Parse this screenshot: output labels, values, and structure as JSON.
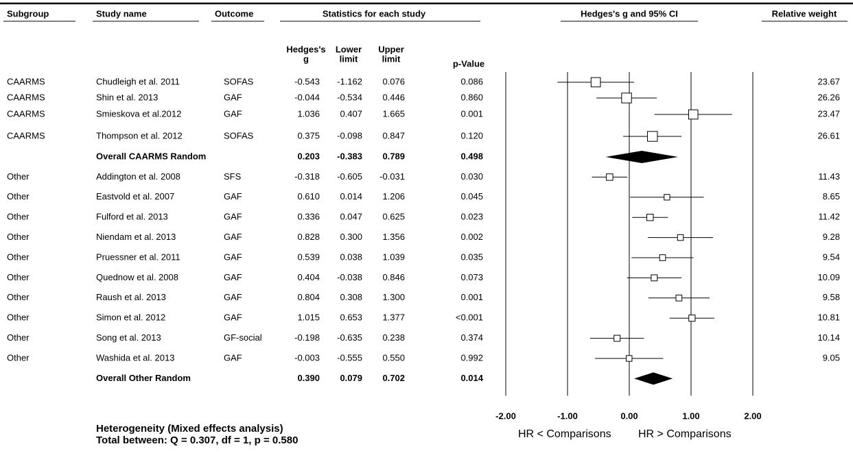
{
  "chart_data": {
    "type": "forest",
    "headers": {
      "subgroup": "Subgroup",
      "study": "Study name",
      "outcome": "Outcome",
      "stats": "Statistics for each study",
      "g": [
        "Hedges's",
        "g"
      ],
      "lower": [
        "Lower",
        "limit"
      ],
      "upper": [
        "Upper",
        "limit"
      ],
      "p": "p-Value",
      "plot": "Hedges's g and 95% CI",
      "weight": "Relative weight"
    },
    "rows": [
      {
        "subgroup": "CAARMS",
        "study": "Chudleigh et al. 2011",
        "outcome": "SOFAS",
        "g": -0.543,
        "g_label": "-0.543",
        "lower": -1.162,
        "lower_label": "-1.162",
        "upper": 0.076,
        "upper_label": "0.076",
        "p": "0.086",
        "weight": 23.67
      },
      {
        "subgroup": "CAARMS",
        "study": "Shin et al. 2013",
        "outcome": "GAF",
        "g": -0.044,
        "g_label": "-0.044",
        "lower": -0.534,
        "lower_label": "-0.534",
        "upper": 0.446,
        "upper_label": "0.446",
        "p": "0.860",
        "weight": 26.26
      },
      {
        "subgroup": "CAARMS",
        "study": "Smieskova et al.2012",
        "outcome": "GAF",
        "g": 1.036,
        "g_label": "1.036",
        "lower": 0.407,
        "lower_label": "0.407",
        "upper": 1.665,
        "upper_label": "1.665",
        "p": "0.001",
        "weight": 23.47
      },
      {
        "subgroup": "CAARMS",
        "study": "Thompson et al. 2012",
        "outcome": "SOFAS",
        "g": 0.375,
        "g_label": "0.375",
        "lower": -0.098,
        "lower_label": "-0.098",
        "upper": 0.847,
        "upper_label": "0.847",
        "p": "0.120",
        "weight": 26.61
      },
      {
        "study": "Overall CAARMS Random",
        "summary": true,
        "g": 0.203,
        "g_label": "0.203",
        "lower": -0.383,
        "lower_label": "-0.383",
        "upper": 0.789,
        "upper_label": "0.789",
        "p": "0.498"
      },
      {
        "subgroup": "Other",
        "study": "Addington et al. 2008",
        "outcome": "SFS",
        "g": -0.318,
        "g_label": "-0.318",
        "lower": -0.605,
        "lower_label": "-0.605",
        "upper": -0.031,
        "upper_label": "-0.031",
        "p": "0.030",
        "weight": 11.43
      },
      {
        "subgroup": "Other",
        "study": "Eastvold et al. 2007",
        "outcome": "GAF",
        "g": 0.61,
        "g_label": "0.610",
        "lower": 0.014,
        "lower_label": "0.014",
        "upper": 1.206,
        "upper_label": "1.206",
        "p": "0.045",
        "weight": 8.65
      },
      {
        "subgroup": "Other",
        "study": "Fulford et al. 2013",
        "outcome": "GAF",
        "g": 0.336,
        "g_label": "0.336",
        "lower": 0.047,
        "lower_label": "0.047",
        "upper": 0.625,
        "upper_label": "0.625",
        "p": "0.023",
        "weight": 11.42
      },
      {
        "subgroup": "Other",
        "study": "Niendam et al. 2013",
        "outcome": "GAF",
        "g": 0.828,
        "g_label": "0.828",
        "lower": 0.3,
        "lower_label": "0.300",
        "upper": 1.356,
        "upper_label": "1.356",
        "p": "0.002",
        "weight": 9.28
      },
      {
        "subgroup": "Other",
        "study": "Pruessner et al. 2011",
        "outcome": "GAF",
        "g": 0.539,
        "g_label": "0.539",
        "lower": 0.038,
        "lower_label": "0.038",
        "upper": 1.039,
        "upper_label": "1.039",
        "p": "0.035",
        "weight": 9.54
      },
      {
        "subgroup": "Other",
        "study": "Quednow et al. 2008",
        "outcome": "GAF",
        "g": 0.404,
        "g_label": "0.404",
        "lower": -0.038,
        "lower_label": "-0.038",
        "upper": 0.846,
        "upper_label": "0.846",
        "p": "0.073",
        "weight": 10.09
      },
      {
        "subgroup": "Other",
        "study": "Raush et al. 2013",
        "outcome": "GAF",
        "g": 0.804,
        "g_label": "0.804",
        "lower": 0.308,
        "lower_label": "0.308",
        "upper": 1.3,
        "upper_label": "1.300",
        "p": "0.001",
        "weight": 9.58
      },
      {
        "subgroup": "Other",
        "study": "Simon et al. 2012",
        "outcome": "GAF",
        "g": 1.015,
        "g_label": "1.015",
        "lower": 0.653,
        "lower_label": "0.653",
        "upper": 1.377,
        "upper_label": "1.377",
        "p": "<0.001",
        "weight": 10.81
      },
      {
        "subgroup": "Other",
        "study": "Song et al. 2013",
        "outcome": "GF-social",
        "g": -0.198,
        "g_label": "-0.198",
        "lower": -0.635,
        "lower_label": "-0.635",
        "upper": 0.238,
        "upper_label": "0.238",
        "p": "0.374",
        "weight": 10.14
      },
      {
        "subgroup": "Other",
        "study": "Washida et al. 2013",
        "outcome": "GAF",
        "g": -0.003,
        "g_label": "-0.003",
        "lower": -0.555,
        "lower_label": "-0.555",
        "upper": 0.55,
        "upper_label": "0.550",
        "p": "0.992",
        "weight": 9.05
      },
      {
        "study": "Overall Other Random",
        "summary": true,
        "g": 0.39,
        "g_label": "0.390",
        "lower": 0.079,
        "lower_label": "0.079",
        "upper": 0.702,
        "upper_label": "0.702",
        "p": "0.014"
      }
    ],
    "xlim": [
      -2,
      2
    ],
    "xticks": [
      {
        "value": -2,
        "label": "-2.00"
      },
      {
        "value": -1,
        "label": "-1.00"
      },
      {
        "value": 0,
        "label": "0.00"
      },
      {
        "value": 1,
        "label": "1.00"
      },
      {
        "value": 2,
        "label": "2.00"
      }
    ],
    "grid": true,
    "x_label_left": "HR < Comparisons",
    "x_label_right": "HR > Comparisons",
    "footnote": [
      "Heterogeneity (Mixed effects analysis)",
      "Total between: Q = 0.307, df = 1, p = 0.580"
    ]
  }
}
